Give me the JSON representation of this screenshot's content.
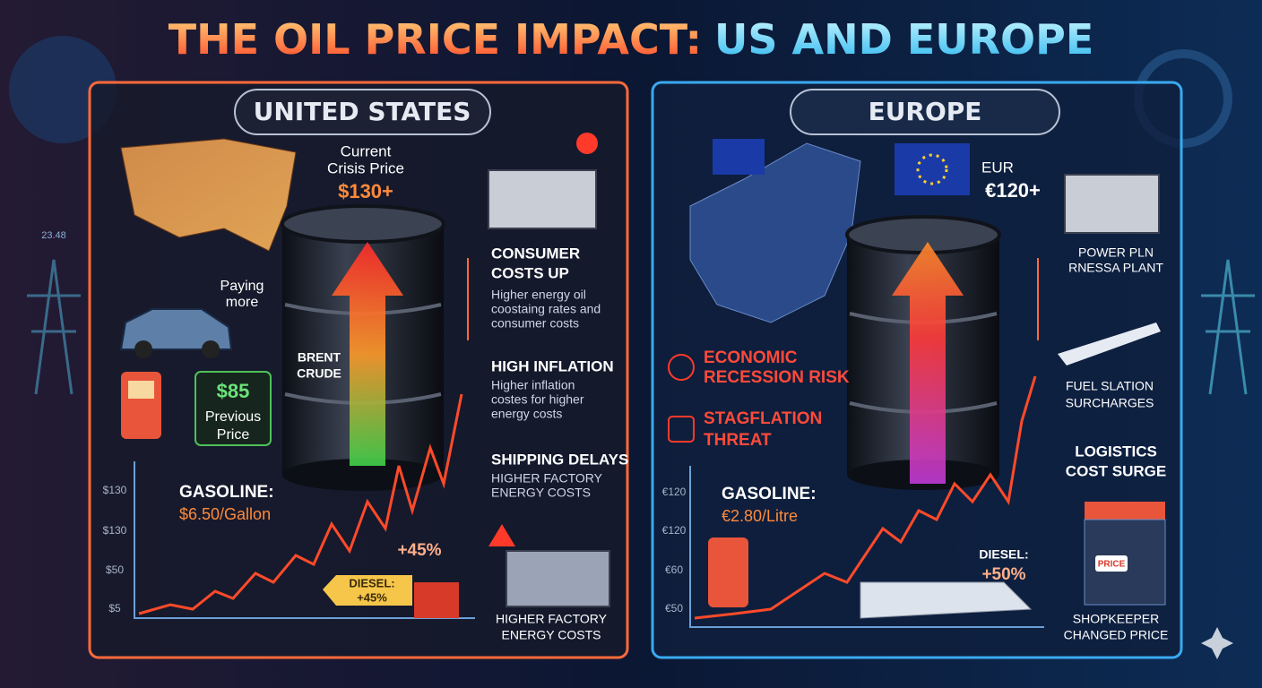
{
  "title": {
    "part1": "THE OIL PRICE IMPACT:",
    "part2": "US AND EUROPE"
  },
  "decor_label": "23.48",
  "us": {
    "heading": "UNITED STATES",
    "crisis_price": {
      "label": [
        "Current",
        "Crisis Price"
      ],
      "value": "$130+"
    },
    "car_label": [
      "Paying",
      "more"
    ],
    "barrel_label": [
      "BRENT",
      "CRUDE"
    ],
    "previous_price": {
      "value": "$85",
      "label": [
        "Previous",
        "Price"
      ]
    },
    "gasoline": {
      "label": "GASOLINE:",
      "value": "$6.50/Gallon"
    },
    "axis_labels": [
      "$130",
      "$130",
      "$50",
      "$5"
    ],
    "change": "+45%",
    "diesel": {
      "label": "DIESEL:",
      "value": "+45%"
    },
    "impacts": [
      {
        "title": [
          "CONSUMER",
          "COSTS UP"
        ],
        "text": [
          "Higher energy oil",
          "coostaing rates and",
          "consumer costs"
        ]
      },
      {
        "title": [
          "HIGH INFLATION"
        ],
        "text": [
          "Higher inflation",
          "costes for higher",
          "energy costs"
        ]
      },
      {
        "title": [
          "SHIPPING DELAYS"
        ],
        "text": [
          "HIGHER FACTORY",
          "ENERGY COSTS"
        ]
      }
    ],
    "factory_caption": [
      "HIGHER FACTORY",
      "ENERGY COSTS"
    ]
  },
  "europe": {
    "heading": "EUROPE",
    "price": {
      "label": "EUR",
      "value": "€120+"
    },
    "risks": [
      [
        "ECONOMIC",
        "RECESSION RISK"
      ],
      [
        "STAGFLATION",
        "THREAT"
      ]
    ],
    "gasoline": {
      "label": "GASOLINE:",
      "value": "€2.80/Litre"
    },
    "axis_labels": [
      "€120",
      "€120",
      "€60",
      "€50"
    ],
    "diesel": {
      "label": "DIESEL:",
      "value": "+50%"
    },
    "impacts": [
      [
        "POWER PLN",
        "RNESSA PLANT"
      ],
      [
        "FUEL SLATION",
        "SURCHARGES"
      ],
      [
        "LOGISTICS",
        "COST SURGE"
      ]
    ],
    "price_tag": "PRICE",
    "shop_caption": [
      "SHOPKEEPER",
      "CHANGED PRICE"
    ]
  }
}
